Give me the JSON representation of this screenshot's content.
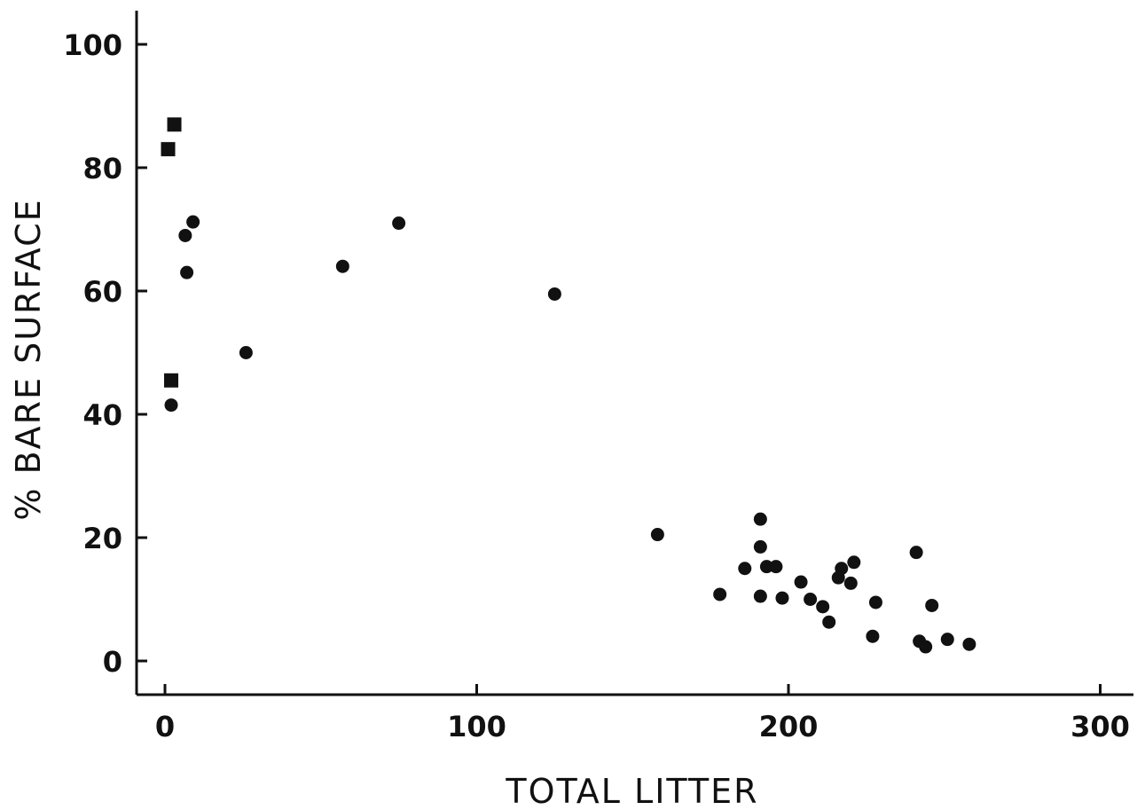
{
  "chart_data": {
    "type": "scatter",
    "title": "",
    "xlabel": "TOTAL LITTER",
    "ylabel": "% BARE SURFACE",
    "xlim": [
      -10,
      310
    ],
    "ylim": [
      -5,
      105
    ],
    "grid": false,
    "x_ticks": [
      0,
      100,
      200,
      300
    ],
    "x_tick_labels": [
      "0",
      "100",
      "200",
      "300"
    ],
    "y_ticks": [
      0,
      20,
      40,
      60,
      80,
      100
    ],
    "y_tick_labels": [
      "0",
      "20",
      "40",
      "60",
      "80",
      "100"
    ],
    "series": [
      {
        "marker": "square",
        "points": [
          {
            "x": 3,
            "y": 87
          },
          {
            "x": 1,
            "y": 83
          },
          {
            "x": 2,
            "y": 45.5
          }
        ]
      },
      {
        "marker": "circle",
        "points": [
          {
            "x": 9,
            "y": 71.2
          },
          {
            "x": 6.5,
            "y": 69
          },
          {
            "x": 7,
            "y": 63
          },
          {
            "x": 2,
            "y": 41.5
          },
          {
            "x": 26,
            "y": 50
          },
          {
            "x": 57,
            "y": 64
          },
          {
            "x": 75,
            "y": 71
          },
          {
            "x": 125,
            "y": 59.5
          },
          {
            "x": 158,
            "y": 20.5
          },
          {
            "x": 178,
            "y": 10.8
          },
          {
            "x": 186,
            "y": 15
          },
          {
            "x": 191,
            "y": 23
          },
          {
            "x": 191,
            "y": 18.5
          },
          {
            "x": 191,
            "y": 10.5
          },
          {
            "x": 193,
            "y": 15.3
          },
          {
            "x": 196,
            "y": 15.3
          },
          {
            "x": 198,
            "y": 10.2
          },
          {
            "x": 204,
            "y": 12.8
          },
          {
            "x": 207,
            "y": 10
          },
          {
            "x": 211,
            "y": 8.8
          },
          {
            "x": 213,
            "y": 6.3
          },
          {
            "x": 216,
            "y": 13.5
          },
          {
            "x": 217,
            "y": 15
          },
          {
            "x": 220,
            "y": 12.6
          },
          {
            "x": 221,
            "y": 16
          },
          {
            "x": 227,
            "y": 4
          },
          {
            "x": 228,
            "y": 9.5
          },
          {
            "x": 241,
            "y": 17.6
          },
          {
            "x": 242,
            "y": 3.2
          },
          {
            "x": 244,
            "y": 2.3
          },
          {
            "x": 246,
            "y": 9
          },
          {
            "x": 251,
            "y": 3.5
          },
          {
            "x": 258,
            "y": 2.7
          }
        ]
      }
    ]
  }
}
